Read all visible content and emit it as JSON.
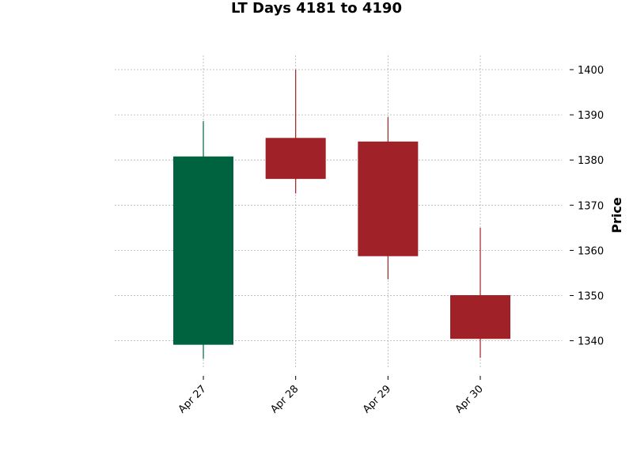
{
  "chart_data": {
    "type": "candlestick",
    "title": "LT Days 4181 to 4190",
    "xlabel": "",
    "ylabel": "Price",
    "ylim": [
      1333,
      1403
    ],
    "y_ticks": [
      1340,
      1350,
      1360,
      1370,
      1380,
      1390,
      1400
    ],
    "y_axis_side": "right",
    "grid": true,
    "categories": [
      "Apr 27",
      "Apr 28",
      "Apr 29",
      "Apr 30"
    ],
    "candles": [
      {
        "date": "Apr 27",
        "open": 1339.2,
        "high": 1388.6,
        "low": 1336.0,
        "close": 1380.7
      },
      {
        "date": "Apr 28",
        "open": 1384.8,
        "high": 1400.0,
        "low": 1372.6,
        "close": 1375.9
      },
      {
        "date": "Apr 29",
        "open": 1384.0,
        "high": 1389.5,
        "low": 1353.6,
        "close": 1358.8
      },
      {
        "date": "Apr 30",
        "open": 1350.0,
        "high": 1365.0,
        "low": 1336.2,
        "close": 1340.5
      }
    ],
    "colors": {
      "up": "#006340",
      "down": "#a02128",
      "grid": "#b0b0b0"
    }
  }
}
